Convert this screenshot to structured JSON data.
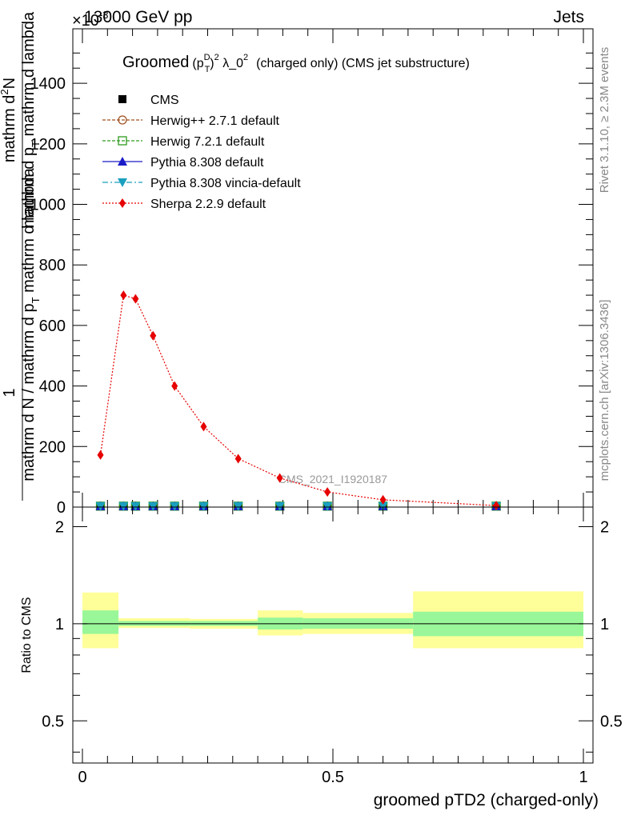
{
  "header": {
    "energy_label": "13000 GeV pp",
    "exponent_label": "×10",
    "exponent_power": "-3",
    "category_label": "Jets"
  },
  "side": {
    "rivet_label": "Rivet 3.1.10, ≥ 2.3M events",
    "mcplots_label": "mcplots.cern.ch [arXiv:1306.3436]"
  },
  "watermark": "CMS_2021_I1920187",
  "chart_data": [
    {
      "type": "line",
      "title_prefix": "Groomed",
      "title_formula_base": "(p",
      "title_formula_sup1": "D",
      "title_formula_sub1": "T",
      "title_formula_close": ")",
      "title_formula_sup2": "2",
      "title_formula_mid": " λ_0",
      "title_formula_sup3": "2",
      "title_suffix": "(charged only) (CMS jet substructure)",
      "ylabel_line1": "mathrm d N / mathrm d p",
      "ylabel_line1_sub": "T",
      "ylabel_line1_tail": " mathrm d lambda",
      "ylabel_line2": "mathrm d",
      "ylabel_line2_sup": "2",
      "ylabel_line2_tail": "N",
      "ylabel_line3": "mathrm d p",
      "ylabel_line3_sub": "T",
      "ylabel_line3_tail": " mathrm d lambda",
      "ylabel_fraction_numerator": "1",
      "xlim": [
        0,
        1
      ],
      "ylim": [
        0,
        1580
      ],
      "ytick_values": [
        0,
        200,
        400,
        600,
        800,
        1000,
        1200,
        1400
      ],
      "ytick_labels": [
        "0",
        "200",
        "400",
        "600",
        "800",
        "1000",
        "1200",
        "1400"
      ],
      "x": [
        0.036,
        0.082,
        0.106,
        0.141,
        0.184,
        0.242,
        0.311,
        0.394,
        0.489,
        0.6,
        0.826
      ],
      "series": [
        {
          "name": "CMS",
          "color": "#000000",
          "marker": "square",
          "values": [
            3,
            3,
            3,
            3,
            3,
            3,
            3,
            3,
            3,
            3,
            3
          ]
        },
        {
          "name": "Herwig++ 2.7.1 default",
          "color": "#a0521e",
          "marker": "circle-open",
          "values": [
            3,
            3,
            3,
            3,
            3,
            3,
            3,
            3,
            3,
            3,
            3
          ]
        },
        {
          "name": "Herwig 7.2.1 default",
          "color": "#2e9a1e",
          "marker": "square-open",
          "values": [
            3,
            3,
            3,
            3,
            3,
            3,
            3,
            3,
            3,
            3,
            3
          ]
        },
        {
          "name": "Pythia 8.308 default",
          "color": "#1a1ac8",
          "marker": "triangle-up",
          "values": [
            3,
            3,
            3,
            3,
            3,
            3,
            3,
            3,
            3,
            3,
            3
          ]
        },
        {
          "name": "Pythia 8.308 vincia-default",
          "color": "#1a9fbf",
          "marker": "triangle-down",
          "values": [
            3,
            3,
            3,
            3,
            3,
            3,
            3,
            3,
            3,
            3,
            3
          ]
        },
        {
          "name": "Sherpa 2.2.9 default",
          "color": "#e60000",
          "marker": "diamond",
          "values": [
            172,
            700,
            688,
            566,
            400,
            266,
            160,
            96,
            50,
            24,
            5
          ]
        }
      ]
    },
    {
      "type": "area",
      "ylabel": "Ratio to CMS",
      "xlabel": "groomed pTD2 (charged-only)",
      "xlim": [
        0,
        1
      ],
      "ylim": [
        0.37,
        2.3
      ],
      "ytick_values": [
        0.5,
        1,
        2
      ],
      "ytick_labels": [
        "0.5",
        "1",
        "2"
      ],
      "xtick_values": [
        0,
        0.5,
        1
      ],
      "xtick_labels": [
        "0",
        "0.5",
        "1"
      ],
      "bins": [
        {
          "lo": 0.0,
          "hi": 0.072,
          "inner_lo": 0.93,
          "inner_hi": 1.1,
          "outer_lo": 0.84,
          "outer_hi": 1.25
        },
        {
          "lo": 0.072,
          "hi": 0.215,
          "inner_lo": 0.985,
          "inner_hi": 1.02,
          "outer_lo": 0.97,
          "outer_hi": 1.04
        },
        {
          "lo": 0.215,
          "hi": 0.35,
          "inner_lo": 0.985,
          "inner_hi": 1.02,
          "outer_lo": 0.965,
          "outer_hi": 1.035
        },
        {
          "lo": 0.35,
          "hi": 0.44,
          "inner_lo": 0.96,
          "inner_hi": 1.045,
          "outer_lo": 0.92,
          "outer_hi": 1.1
        },
        {
          "lo": 0.44,
          "hi": 0.66,
          "inner_lo": 0.965,
          "inner_hi": 1.04,
          "outer_lo": 0.93,
          "outer_hi": 1.08
        },
        {
          "lo": 0.66,
          "hi": 1.0,
          "inner_lo": 0.915,
          "inner_hi": 1.09,
          "outer_lo": 0.84,
          "outer_hi": 1.26
        }
      ],
      "colors": {
        "inner": "#99f799",
        "outer": "#ffff99",
        "line": "#000000"
      }
    }
  ]
}
